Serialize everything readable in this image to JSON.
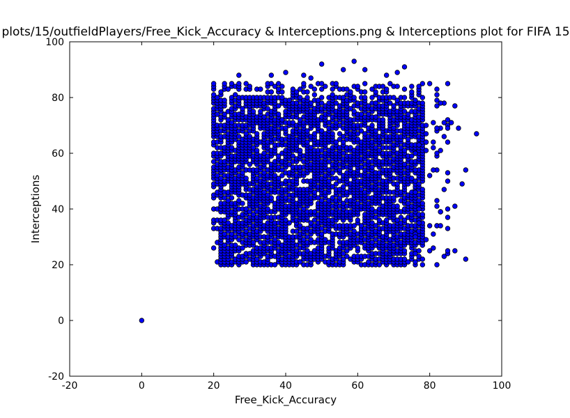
{
  "chart_data": {
    "type": "scatter",
    "title": "plots/15/outfieldPlayers/Free_Kick_Accuracy & Interceptions.png & Interceptions plot for FIFA 15",
    "xlabel": "Free_Kick_Accuracy",
    "ylabel": "Interceptions",
    "xlim": [
      -20,
      100
    ],
    "ylim": [
      -20,
      100
    ],
    "xticks": [
      -20,
      0,
      20,
      40,
      60,
      80,
      100
    ],
    "yticks": [
      -20,
      0,
      20,
      40,
      60,
      80,
      100
    ],
    "grid": false,
    "marker_color": "#0000ff",
    "marker_edge": "#000000",
    "cluster": {
      "x_range": [
        20,
        78
      ],
      "y_range": [
        20,
        85
      ]
    },
    "points": [
      [
        0,
        0
      ],
      [
        93,
        67
      ],
      [
        90,
        54
      ],
      [
        90,
        22
      ],
      [
        89,
        49
      ],
      [
        88,
        69
      ],
      [
        87,
        77
      ],
      [
        87,
        41
      ],
      [
        87,
        25
      ],
      [
        86,
        71
      ],
      [
        85,
        85
      ],
      [
        84,
        66
      ],
      [
        83,
        34
      ],
      [
        82,
        20
      ],
      [
        82,
        83
      ],
      [
        80,
        85
      ],
      [
        73,
        91
      ],
      [
        71,
        89
      ],
      [
        68,
        88
      ],
      [
        62,
        90
      ],
      [
        59,
        93
      ],
      [
        56,
        90
      ],
      [
        50,
        92
      ],
      [
        47,
        87
      ],
      [
        45,
        88
      ],
      [
        40,
        89
      ],
      [
        36,
        88
      ],
      [
        27,
        88
      ]
    ]
  }
}
